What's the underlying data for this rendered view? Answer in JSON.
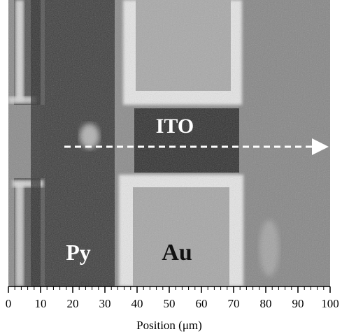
{
  "figure": {
    "axis": {
      "title": "Position (μm)",
      "xmin": 0,
      "xmax": 100,
      "major_ticks": [
        0,
        10,
        20,
        30,
        40,
        50,
        60,
        70,
        80,
        90,
        100
      ],
      "minor_step": 2
    },
    "labels": {
      "ito": "ITO",
      "py": "Py",
      "au": "Au"
    },
    "scan_arrow": {
      "from_um": 20,
      "to_um": 100,
      "style": "dashed",
      "color": "#ffffff"
    },
    "colors": {
      "background": "#8a8a8a",
      "py_strip": "#3c3c3c",
      "au_pad": "#a8a8a8",
      "au_rim": "#e6e6e6",
      "ito_gap": "#2e2e2e",
      "py_label": "#ffffff",
      "au_label": "#111111",
      "ito_label": "#ffffff"
    }
  }
}
